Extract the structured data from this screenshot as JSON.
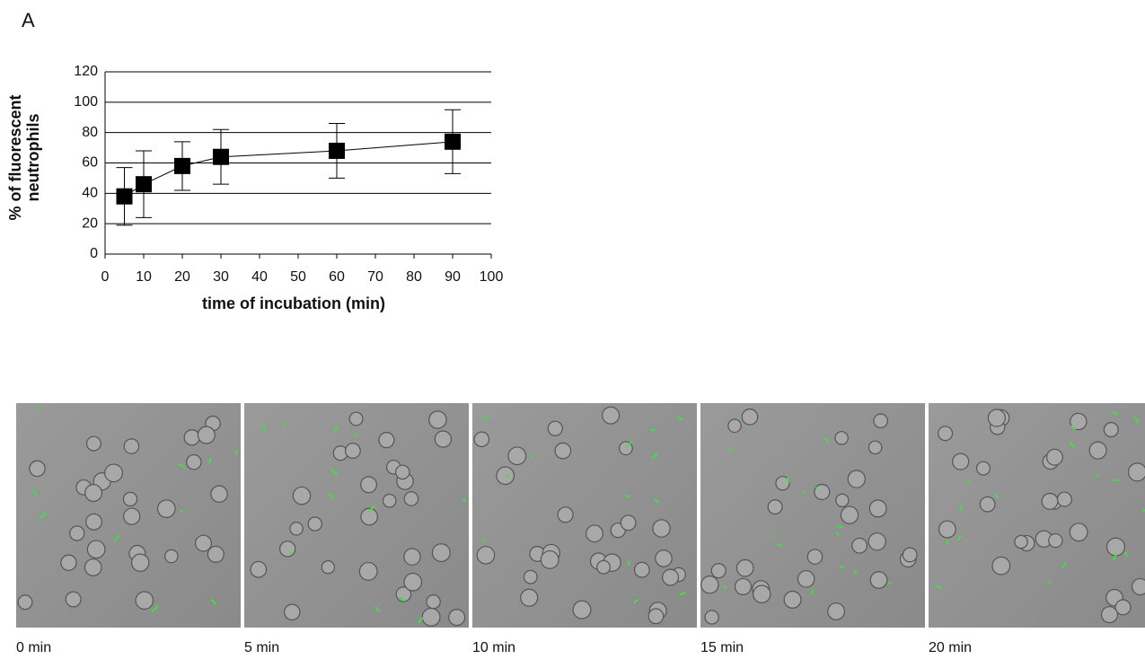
{
  "panel_label": "A",
  "chart_data": {
    "type": "line",
    "x_label": "time of incubation (min)",
    "y_label": [
      "% of fluorescent",
      "neutrophils"
    ],
    "x": [
      5,
      10,
      20,
      30,
      60,
      90
    ],
    "series": [
      {
        "color": "#000000",
        "values": [
          38,
          46,
          58,
          64,
          68,
          74
        ],
        "errors": [
          19,
          22,
          16,
          18,
          18,
          21
        ]
      }
    ],
    "xlim": [
      0,
      100
    ],
    "xticks": [
      0,
      10,
      20,
      30,
      40,
      50,
      60,
      70,
      80,
      90,
      100
    ],
    "ylim": [
      0,
      120
    ],
    "yticks": [
      0,
      20,
      40,
      60,
      80,
      100,
      120
    ],
    "grid": true
  },
  "images": [
    {
      "caption": "0 min"
    },
    {
      "caption": "5 min"
    },
    {
      "caption": "10 min"
    },
    {
      "caption": "15 min"
    },
    {
      "caption": "20 min"
    }
  ]
}
